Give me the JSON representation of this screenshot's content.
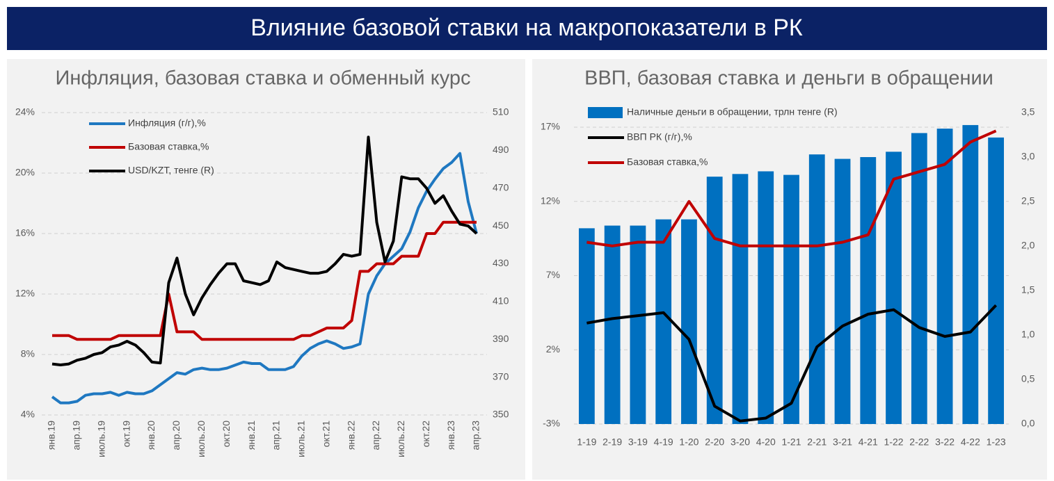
{
  "title": "Влияние базовой ставки на макропоказатели в РК",
  "chart_data": [
    {
      "type": "line",
      "title": "Инфляция, базовая ставка и обменный курс",
      "legend": "top-left",
      "grid": true,
      "categories": [
        "янв.19",
        null,
        null,
        "апр.19",
        null,
        null,
        "июль.19",
        null,
        null,
        "окт.19",
        null,
        null,
        "янв.20",
        null,
        null,
        "апр.20",
        null,
        null,
        "июль.20",
        null,
        null,
        "окт.20",
        null,
        null,
        "янв.21",
        null,
        null,
        "апр.21",
        null,
        null,
        "июль.21",
        null,
        null,
        "окт.21",
        null,
        null,
        "янв.22",
        null,
        null,
        "апр.22",
        null,
        null,
        "июль.22",
        null,
        null,
        "окт.22",
        null,
        null,
        "янв.23",
        null,
        null,
        "апр.23"
      ],
      "ylim": [
        4,
        24
      ],
      "yticks": [
        {
          "value": 4,
          "label": "4%"
        },
        {
          "value": 8,
          "label": "8%"
        },
        {
          "value": 12,
          "label": "12%"
        },
        {
          "value": 16,
          "label": "16%"
        },
        {
          "value": 20,
          "label": "20%"
        },
        {
          "value": 24,
          "label": "24%"
        }
      ],
      "y2lim": [
        350,
        510
      ],
      "y2ticks": [
        350,
        370,
        390,
        410,
        430,
        450,
        470,
        490,
        510
      ],
      "series": [
        {
          "name": "Инфляция (г/г),%",
          "color": "#1f78c1",
          "values": [
            5.2,
            4.8,
            4.8,
            4.9,
            5.3,
            5.4,
            5.4,
            5.5,
            5.3,
            5.5,
            5.4,
            5.4,
            5.6,
            6.0,
            6.4,
            6.8,
            6.7,
            7.0,
            7.1,
            7.0,
            7.0,
            7.1,
            7.3,
            7.5,
            7.4,
            7.4,
            7.0,
            7.0,
            7.0,
            7.2,
            7.9,
            8.4,
            8.7,
            8.9,
            8.7,
            8.4,
            8.5,
            8.7,
            12.0,
            13.2,
            14.0,
            14.5,
            15.0,
            16.1,
            17.7,
            18.8,
            19.6,
            20.3,
            20.7,
            21.3,
            18.1,
            16.0
          ]
        },
        {
          "name": "Базовая ставка,%",
          "color": "#c00000",
          "values": [
            9.25,
            9.25,
            9.25,
            9.0,
            9.0,
            9.0,
            9.0,
            9.0,
            9.25,
            9.25,
            9.25,
            9.25,
            9.25,
            9.25,
            12.0,
            9.5,
            9.5,
            9.5,
            9.0,
            9.0,
            9.0,
            9.0,
            9.0,
            9.0,
            9.0,
            9.0,
            9.0,
            9.0,
            9.0,
            9.0,
            9.25,
            9.25,
            9.5,
            9.75,
            9.75,
            9.75,
            10.25,
            13.5,
            13.5,
            14.0,
            14.0,
            14.0,
            14.5,
            14.5,
            14.5,
            16.0,
            16.0,
            16.75,
            16.75,
            16.75,
            16.75,
            16.75
          ]
        },
        {
          "name": "USD/KZT, тенге (R)",
          "color": "#000000",
          "axis": "y2",
          "values": [
            377,
            376.5,
            377,
            379,
            380,
            382,
            383,
            386,
            387,
            389,
            387,
            383,
            378,
            377.5,
            420,
            433,
            414,
            403,
            412,
            419,
            425,
            430,
            430,
            421,
            420,
            419,
            421,
            431,
            428,
            427,
            426,
            425,
            425,
            426,
            430,
            435,
            434,
            435,
            497,
            452,
            431,
            442,
            476,
            475,
            475,
            470,
            462,
            466,
            458,
            451,
            450,
            446
          ]
        }
      ]
    },
    {
      "type": "bar",
      "title": "ВВП, базовая ставка и деньги в обращении",
      "legend": "top-left",
      "grid": true,
      "categories": [
        "1-19",
        "2-19",
        "3-19",
        "4-19",
        "1-20",
        "2-20",
        "3-20",
        "4-20",
        "1-21",
        "2-21",
        "3-21",
        "4-21",
        "1-22",
        "2-22",
        "3-22",
        "4-22",
        "1-23"
      ],
      "ylim": [
        -3,
        17
      ],
      "yticks": [
        {
          "value": -3,
          "label": "-3%"
        },
        {
          "value": 2,
          "label": "2%"
        },
        {
          "value": 7,
          "label": "7%"
        },
        {
          "value": 12,
          "label": "12%"
        },
        {
          "value": 17,
          "label": "17%"
        }
      ],
      "y2lim": [
        0,
        3.5
      ],
      "y2ticks": [
        {
          "value": 0,
          "label": "0,0"
        },
        {
          "value": 0.5,
          "label": "0,5"
        },
        {
          "value": 1,
          "label": "1,0"
        },
        {
          "value": 1.5,
          "label": "1,5"
        },
        {
          "value": 2,
          "label": "2,0"
        },
        {
          "value": 2.5,
          "label": "2,5"
        },
        {
          "value": 3,
          "label": "3,0"
        },
        {
          "value": 3.5,
          "label": "3,5"
        }
      ],
      "series": [
        {
          "name": "Наличные деньги в обращении, трлн тенге (R)",
          "color": "#0070c0",
          "axis": "y2",
          "type": "bar",
          "values": [
            2.2,
            2.23,
            2.23,
            2.3,
            2.3,
            2.78,
            2.81,
            2.84,
            2.8,
            3.03,
            2.98,
            3.0,
            3.06,
            3.27,
            3.32,
            3.36,
            3.22
          ]
        },
        {
          "name": "ВВП РК (г/г),%",
          "color": "#000000",
          "type": "line",
          "values": [
            3.8,
            4.1,
            4.3,
            4.5,
            2.7,
            -1.8,
            -2.8,
            -2.6,
            -1.6,
            2.2,
            3.6,
            4.4,
            4.7,
            3.5,
            2.9,
            3.2,
            5.0
          ]
        },
        {
          "name": "Базовая ставка,%",
          "color": "#c00000",
          "type": "line",
          "values": [
            9.25,
            9.0,
            9.25,
            9.25,
            12.0,
            9.5,
            9.0,
            9.0,
            9.0,
            9.0,
            9.25,
            9.75,
            13.5,
            14.0,
            14.5,
            16.0,
            16.75
          ]
        }
      ]
    }
  ]
}
